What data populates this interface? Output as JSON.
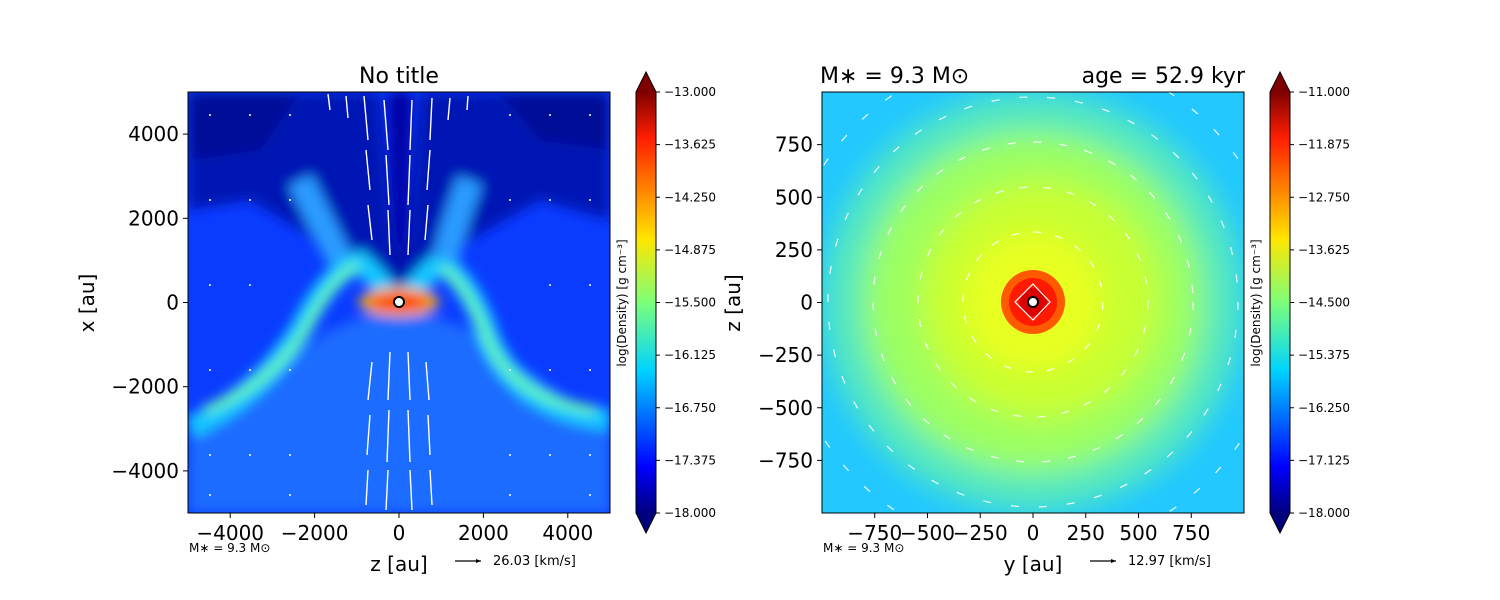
{
  "chart_data": [
    {
      "type": "heatmap",
      "title": "No title",
      "xlabel": "z [au]",
      "ylabel": "x [au]",
      "xlim": [
        -5000,
        5000
      ],
      "ylim": [
        -5000,
        5000
      ],
      "xticks": [
        "−4000",
        "−2000",
        "0",
        "2000",
        "4000"
      ],
      "xtick_values": [
        -4000,
        -2000,
        0,
        2000,
        4000
      ],
      "yticks": [
        "4000",
        "2000",
        "0",
        "−2000",
        "−4000"
      ],
      "ytick_values": [
        4000,
        2000,
        0,
        -2000,
        -4000
      ],
      "colorbar": {
        "label": "log(Density) [g cm⁻³]",
        "range": [
          -18.0,
          -13.0
        ],
        "ticks": [
          "−13.000",
          "−13.625",
          "−14.250",
          "−14.875",
          "−15.500",
          "−16.125",
          "−16.750",
          "−17.375",
          "−18.000"
        ],
        "colormap": "jet"
      },
      "mass_annotation": "M∗ = 9.3 M⊙",
      "quiver_key": "26.03 [km/s]",
      "field": "bipolar outflow cavity with dense equatorial disk"
    },
    {
      "type": "heatmap",
      "title_left": "M∗ = 9.3 M⊙",
      "title_right": "age = 52.9 kyr",
      "xlabel": "y [au]",
      "ylabel": "z [au]",
      "xlim": [
        -1000,
        1000
      ],
      "ylim": [
        -1000,
        1000
      ],
      "xticks": [
        "−750",
        "−500",
        "−250",
        "0",
        "250",
        "500",
        "750"
      ],
      "xtick_values": [
        -750,
        -500,
        -250,
        0,
        250,
        500,
        750
      ],
      "yticks": [
        "750",
        "500",
        "250",
        "0",
        "−250",
        "−500",
        "−750"
      ],
      "ytick_values": [
        750,
        500,
        250,
        0,
        -250,
        -500,
        -750
      ],
      "colorbar": {
        "label": "log(Density) [g cm⁻³]",
        "range": [
          -18.0,
          -11.0
        ],
        "ticks": [
          "−11.000",
          "−11.875",
          "−12.750",
          "−13.625",
          "−14.500",
          "−15.375",
          "−16.250",
          "−17.125",
          "−18.000"
        ],
        "colormap": "jet"
      },
      "mass_annotation": "M∗ = 9.3 M⊙",
      "quiver_key": "12.97 [km/s]",
      "field": "face-on disk with rotating velocity field"
    }
  ]
}
